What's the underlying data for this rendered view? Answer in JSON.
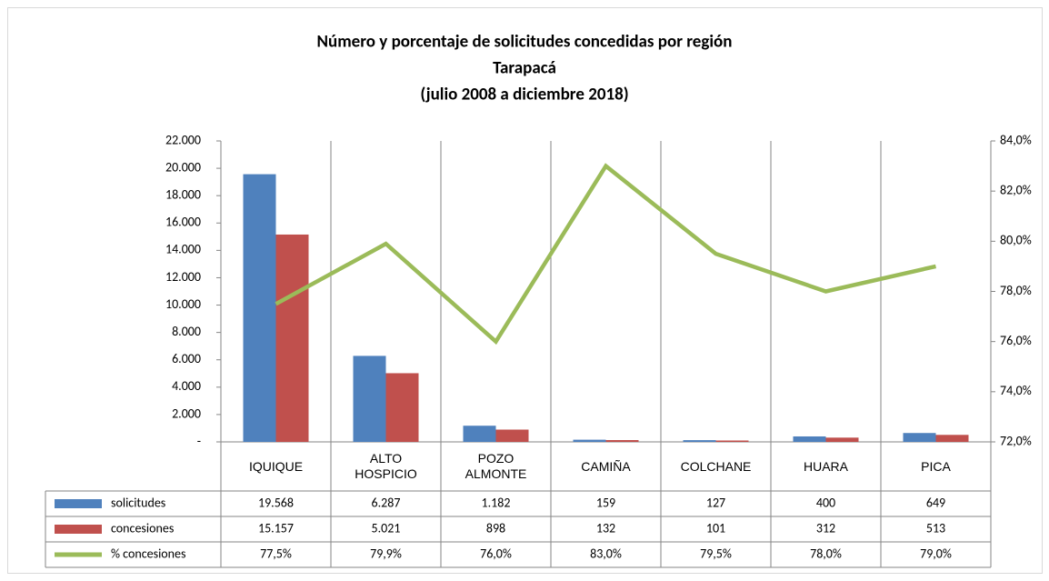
{
  "chart_data": {
    "type": "bar",
    "title": [
      "Número y porcentaje de solicitudes concedidas por región",
      "Tarapacá",
      "(julio 2008 a diciembre 2018)"
    ],
    "categories": [
      "IQUIQUE",
      "ALTO HOSPICIO",
      "POZO ALMONTE",
      "CAMIÑA",
      "COLCHANE",
      "HUARA",
      "PICA"
    ],
    "series": [
      {
        "name": "solicitudes",
        "color": "#4f81bd",
        "values": [
          19568,
          6287,
          1182,
          159,
          127,
          400,
          649
        ],
        "value_labels": [
          "19.568",
          "6.287",
          "1.182",
          "159",
          "127",
          "400",
          "649"
        ]
      },
      {
        "name": "concesiones",
        "color": "#c0504d",
        "values": [
          15157,
          5021,
          898,
          132,
          101,
          312,
          513
        ],
        "value_labels": [
          "15.157",
          "5.021",
          "898",
          "132",
          "101",
          "312",
          "513"
        ]
      },
      {
        "name": "% concesiones",
        "color": "#9bbb59",
        "type": "line",
        "axis": "y2",
        "values": [
          77.5,
          79.9,
          76.0,
          83.0,
          79.5,
          78.0,
          79.0
        ],
        "value_labels": [
          "77,5%",
          "79,9%",
          "76,0%",
          "83,0%",
          "79,5%",
          "78,0%",
          "79,0%"
        ]
      }
    ],
    "ylim": [
      0,
      22000
    ],
    "yticks": [
      {
        "value": 0,
        "label": "-"
      },
      {
        "value": 2000,
        "label": "2.000"
      },
      {
        "value": 4000,
        "label": "4.000"
      },
      {
        "value": 6000,
        "label": "6.000"
      },
      {
        "value": 8000,
        "label": "8.000"
      },
      {
        "value": 10000,
        "label": "10.000"
      },
      {
        "value": 12000,
        "label": "12.000"
      },
      {
        "value": 14000,
        "label": "14.000"
      },
      {
        "value": 16000,
        "label": "16.000"
      },
      {
        "value": 18000,
        "label": "18.000"
      },
      {
        "value": 20000,
        "label": "20.000"
      },
      {
        "value": 22000,
        "label": "22.000"
      }
    ],
    "y2lim": [
      72,
      84
    ],
    "y2ticks": [
      {
        "value": 72,
        "label": "72,0%"
      },
      {
        "value": 74,
        "label": "74,0%"
      },
      {
        "value": 76,
        "label": "76,0%"
      },
      {
        "value": 78,
        "label": "78,0%"
      },
      {
        "value": 80,
        "label": "80,0%"
      },
      {
        "value": 82,
        "label": "82,0%"
      },
      {
        "value": 84,
        "label": "84,0%"
      }
    ],
    "grid": false
  }
}
